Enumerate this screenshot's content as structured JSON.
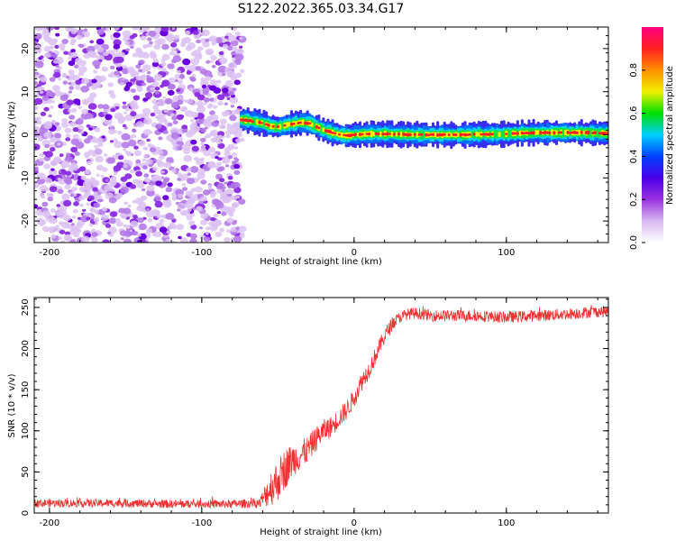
{
  "figure": {
    "title": "S122.2022.365.03.34.G17"
  },
  "chart_data": [
    {
      "type": "heatmap",
      "xlabel": "Height of straight line (km)",
      "ylabel": "Frequency (Hz)",
      "xlim": [
        -210,
        167
      ],
      "ylim": [
        -25,
        25
      ],
      "x_ticks": [
        -200,
        -100,
        0,
        100
      ],
      "y_ticks": [
        -20,
        -10,
        0,
        10,
        20
      ],
      "grid": false,
      "noise_region_x": [
        -210,
        -73
      ],
      "signal_ridge": {
        "x": [
          -75,
          -70,
          -65,
          -60,
          -55,
          -50,
          -45,
          -40,
          -35,
          -30,
          -25,
          -20,
          -15,
          -10,
          -5,
          0,
          10,
          20,
          30,
          40,
          50,
          60,
          70,
          80,
          90,
          100,
          110,
          120,
          130,
          140,
          150,
          160,
          167
        ],
        "frequency": [
          3.5,
          3.3,
          3.0,
          2.6,
          2.0,
          1.8,
          2.3,
          2.6,
          2.9,
          2.6,
          1.8,
          1.0,
          0.5,
          0.0,
          -0.2,
          0.0,
          0.2,
          0.2,
          0.1,
          0.0,
          0.0,
          0.0,
          0.0,
          0.1,
          0.1,
          0.2,
          0.4,
          0.5,
          0.5,
          0.5,
          0.5,
          0.4,
          0.3
        ]
      },
      "colorbar": {
        "label": "Normalized spectral amplitude",
        "range": [
          0,
          1
        ],
        "ticks": [
          0.0,
          0.2,
          0.4,
          0.6,
          0.8
        ],
        "colors": [
          "#ffffff",
          "#d8b8f0",
          "#9a32e0",
          "#4a00e8",
          "#0040ff",
          "#00d0ff",
          "#00e000",
          "#f0f000",
          "#ff9000",
          "#ff2020",
          "#ff0080"
        ]
      }
    },
    {
      "type": "line",
      "xlabel": "Height of straight line (km)",
      "ylabel": "SNR (10 * v/v)",
      "xlim": [
        -210,
        167
      ],
      "ylim": [
        0,
        262
      ],
      "x_ticks": [
        -200,
        -100,
        0,
        100
      ],
      "y_ticks": [
        0,
        50,
        100,
        150,
        200,
        250
      ],
      "grid": false,
      "color": "#f03030",
      "series": [
        {
          "x": [
            -210,
            -180,
            -150,
            -120,
            -100,
            -80,
            -62,
            -55,
            -50,
            -45,
            -40,
            -35,
            -30,
            -25,
            -20,
            -15,
            -10,
            -5,
            0,
            5,
            10,
            15,
            20,
            25,
            30,
            35,
            40,
            45,
            50,
            60,
            80,
            100,
            120,
            140,
            160,
            167
          ],
          "y": [
            12,
            12,
            12,
            11,
            11,
            11,
            12,
            30,
            40,
            55,
            65,
            70,
            78,
            90,
            100,
            105,
            115,
            125,
            140,
            160,
            175,
            195,
            215,
            230,
            238,
            242,
            243,
            242,
            240,
            240,
            240,
            238,
            240,
            242,
            245,
            245
          ],
          "noise": [
            5,
            5,
            5,
            5,
            5,
            5,
            6,
            22,
            25,
            25,
            20,
            18,
            16,
            15,
            14,
            13,
            12,
            12,
            12,
            12,
            11,
            10,
            10,
            8,
            7,
            7,
            7,
            7,
            7,
            7,
            7,
            7,
            7,
            7,
            7,
            7
          ]
        }
      ]
    }
  ]
}
